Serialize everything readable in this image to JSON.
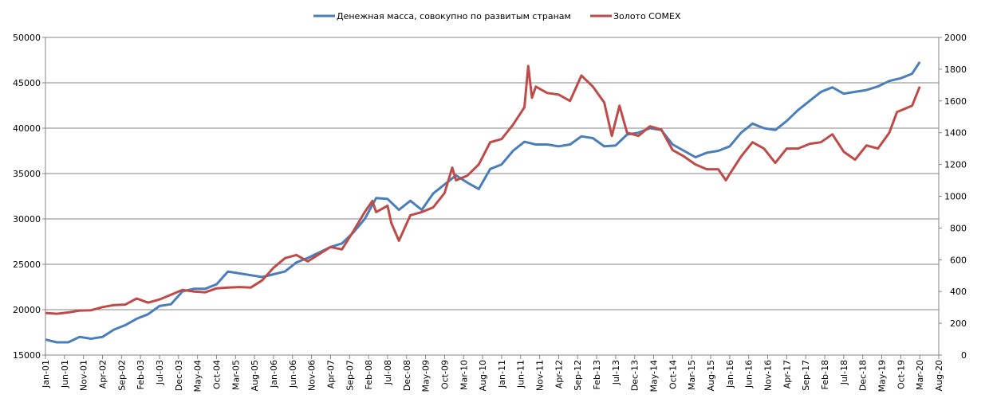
{
  "chart_data": {
    "type": "line",
    "title": "",
    "legend_position": "top",
    "grid": true,
    "y_left": {
      "min": 15000,
      "max": 50000,
      "step": 5000,
      "ticks": [
        "15000",
        "20000",
        "25000",
        "30000",
        "35000",
        "40000",
        "45000",
        "50000"
      ]
    },
    "y_right": {
      "min": 0,
      "max": 2000,
      "step": 200,
      "ticks": [
        "0",
        "200",
        "400",
        "600",
        "800",
        "1000",
        "1200",
        "1400",
        "1600",
        "1800",
        "2000"
      ]
    },
    "x_range": [
      "2001-01",
      "2020-08"
    ],
    "x_tick_labels": [
      "Jan-01",
      "Jun-01",
      "Nov-01",
      "Apr-02",
      "Sep-02",
      "Feb-03",
      "Jul-03",
      "Dec-03",
      "May-04",
      "Oct-04",
      "Mar-05",
      "Aug-05",
      "Jan-06",
      "Jun-06",
      "Nov-06",
      "Apr-07",
      "Sep-07",
      "Feb-08",
      "Jul-08",
      "Dec-08",
      "May-09",
      "Oct-09",
      "Mar-10",
      "Aug-10",
      "Jan-11",
      "Jun-11",
      "Nov-11",
      "Apr-12",
      "Sep-12",
      "Feb-13",
      "Jul-13",
      "Dec-13",
      "May-14",
      "Oct-14",
      "Mar-15",
      "Aug-15",
      "Jan-16",
      "Jun-16",
      "Nov-16",
      "Apr-17",
      "Sep-17",
      "Feb-18",
      "Jul-18",
      "Dec-18",
      "May-19",
      "Oct-19",
      "Mar-20",
      "Aug-20"
    ],
    "series": [
      {
        "name": "Денежная  масса, совокупно по развитым странам",
        "axis": "left",
        "color": "#4a7ebb",
        "points": [
          [
            "2001-01",
            16700
          ],
          [
            "2001-04",
            16400
          ],
          [
            "2001-07",
            16400
          ],
          [
            "2001-10",
            17000
          ],
          [
            "2002-01",
            16800
          ],
          [
            "2002-04",
            17000
          ],
          [
            "2002-07",
            17800
          ],
          [
            "2002-10",
            18300
          ],
          [
            "2003-01",
            19000
          ],
          [
            "2003-04",
            19500
          ],
          [
            "2003-07",
            20400
          ],
          [
            "2003-10",
            20600
          ],
          [
            "2004-01",
            22000
          ],
          [
            "2004-04",
            22300
          ],
          [
            "2004-07",
            22300
          ],
          [
            "2004-10",
            22800
          ],
          [
            "2005-01",
            24200
          ],
          [
            "2005-04",
            24000
          ],
          [
            "2005-07",
            23800
          ],
          [
            "2005-10",
            23600
          ],
          [
            "2006-01",
            23900
          ],
          [
            "2006-04",
            24200
          ],
          [
            "2006-07",
            25200
          ],
          [
            "2006-10",
            25700
          ],
          [
            "2007-01",
            26300
          ],
          [
            "2007-04",
            26900
          ],
          [
            "2007-07",
            27300
          ],
          [
            "2007-10",
            28500
          ],
          [
            "2008-01",
            30000
          ],
          [
            "2008-04",
            32300
          ],
          [
            "2008-07",
            32200
          ],
          [
            "2008-10",
            31000
          ],
          [
            "2009-01",
            32000
          ],
          [
            "2009-04",
            31000
          ],
          [
            "2009-07",
            32800
          ],
          [
            "2009-10",
            33800
          ],
          [
            "2010-01",
            34800
          ],
          [
            "2010-04",
            34000
          ],
          [
            "2010-07",
            33300
          ],
          [
            "2010-10",
            35500
          ],
          [
            "2011-01",
            36000
          ],
          [
            "2011-04",
            37500
          ],
          [
            "2011-07",
            38500
          ],
          [
            "2011-10",
            38200
          ],
          [
            "2012-01",
            38200
          ],
          [
            "2012-04",
            38000
          ],
          [
            "2012-07",
            38200
          ],
          [
            "2012-10",
            39100
          ],
          [
            "2013-01",
            38900
          ],
          [
            "2013-04",
            38000
          ],
          [
            "2013-07",
            38100
          ],
          [
            "2013-10",
            39300
          ],
          [
            "2014-01",
            39500
          ],
          [
            "2014-04",
            40000
          ],
          [
            "2014-07",
            39800
          ],
          [
            "2014-10",
            38200
          ],
          [
            "2015-01",
            37500
          ],
          [
            "2015-04",
            36800
          ],
          [
            "2015-07",
            37300
          ],
          [
            "2015-10",
            37500
          ],
          [
            "2016-01",
            38000
          ],
          [
            "2016-04",
            39500
          ],
          [
            "2016-07",
            40500
          ],
          [
            "2016-10",
            40000
          ],
          [
            "2017-01",
            39800
          ],
          [
            "2017-04",
            40800
          ],
          [
            "2017-07",
            42000
          ],
          [
            "2017-10",
            43000
          ],
          [
            "2018-01",
            44000
          ],
          [
            "2018-04",
            44500
          ],
          [
            "2018-07",
            43800
          ],
          [
            "2018-10",
            44000
          ],
          [
            "2019-01",
            44200
          ],
          [
            "2019-04",
            44600
          ],
          [
            "2019-07",
            45200
          ],
          [
            "2019-10",
            45500
          ],
          [
            "2020-01",
            46000
          ],
          [
            "2020-03",
            47300
          ]
        ]
      },
      {
        "name": "Золото COMEX",
        "axis": "right",
        "color": "#be4b48",
        "points": [
          [
            "2001-01",
            265
          ],
          [
            "2001-04",
            260
          ],
          [
            "2001-07",
            268
          ],
          [
            "2001-10",
            280
          ],
          [
            "2002-01",
            282
          ],
          [
            "2002-04",
            302
          ],
          [
            "2002-07",
            315
          ],
          [
            "2002-10",
            318
          ],
          [
            "2003-01",
            356
          ],
          [
            "2003-04",
            330
          ],
          [
            "2003-07",
            350
          ],
          [
            "2003-10",
            380
          ],
          [
            "2004-01",
            410
          ],
          [
            "2004-04",
            400
          ],
          [
            "2004-07",
            395
          ],
          [
            "2004-10",
            420
          ],
          [
            "2005-01",
            425
          ],
          [
            "2005-04",
            428
          ],
          [
            "2005-07",
            425
          ],
          [
            "2005-10",
            470
          ],
          [
            "2006-01",
            550
          ],
          [
            "2006-04",
            610
          ],
          [
            "2006-07",
            630
          ],
          [
            "2006-10",
            590
          ],
          [
            "2007-01",
            635
          ],
          [
            "2007-04",
            680
          ],
          [
            "2007-07",
            665
          ],
          [
            "2007-10",
            780
          ],
          [
            "2008-01",
            900
          ],
          [
            "2008-03",
            970
          ],
          [
            "2008-04",
            900
          ],
          [
            "2008-07",
            940
          ],
          [
            "2008-08",
            830
          ],
          [
            "2008-10",
            720
          ],
          [
            "2009-01",
            880
          ],
          [
            "2009-04",
            900
          ],
          [
            "2009-07",
            930
          ],
          [
            "2009-10",
            1020
          ],
          [
            "2009-12",
            1180
          ],
          [
            "2010-01",
            1100
          ],
          [
            "2010-04",
            1130
          ],
          [
            "2010-07",
            1200
          ],
          [
            "2010-10",
            1340
          ],
          [
            "2011-01",
            1360
          ],
          [
            "2011-04",
            1450
          ],
          [
            "2011-07",
            1560
          ],
          [
            "2011-08",
            1820
          ],
          [
            "2011-09",
            1620
          ],
          [
            "2011-10",
            1690
          ],
          [
            "2012-01",
            1650
          ],
          [
            "2012-04",
            1640
          ],
          [
            "2012-07",
            1600
          ],
          [
            "2012-10",
            1760
          ],
          [
            "2013-01",
            1690
          ],
          [
            "2013-04",
            1590
          ],
          [
            "2013-06",
            1380
          ],
          [
            "2013-08",
            1570
          ],
          [
            "2013-10",
            1400
          ],
          [
            "2014-01",
            1380
          ],
          [
            "2014-04",
            1440
          ],
          [
            "2014-07",
            1420
          ],
          [
            "2014-10",
            1290
          ],
          [
            "2015-01",
            1250
          ],
          [
            "2015-04",
            1200
          ],
          [
            "2015-07",
            1170
          ],
          [
            "2015-10",
            1170
          ],
          [
            "2015-12",
            1100
          ],
          [
            "2016-01",
            1140
          ],
          [
            "2016-04",
            1250
          ],
          [
            "2016-07",
            1340
          ],
          [
            "2016-10",
            1300
          ],
          [
            "2017-01",
            1210
          ],
          [
            "2017-04",
            1300
          ],
          [
            "2017-07",
            1300
          ],
          [
            "2017-10",
            1330
          ],
          [
            "2018-01",
            1340
          ],
          [
            "2018-04",
            1390
          ],
          [
            "2018-07",
            1280
          ],
          [
            "2018-10",
            1230
          ],
          [
            "2019-01",
            1320
          ],
          [
            "2019-04",
            1300
          ],
          [
            "2019-07",
            1400
          ],
          [
            "2019-09",
            1530
          ],
          [
            "2020-01",
            1570
          ],
          [
            "2020-03",
            1690
          ]
        ]
      }
    ]
  }
}
